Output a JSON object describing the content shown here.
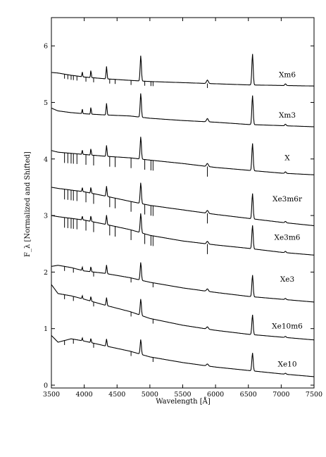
{
  "chart_data": {
    "type": "line",
    "xlabel": "Wavelength [Å]",
    "ylabel": "F_λ [Normalized and Shifted]",
    "xlim": [
      3500,
      7500
    ],
    "ylim": [
      -0.05,
      6.5
    ],
    "xticks": [
      3500,
      4000,
      4500,
      5000,
      5500,
      6000,
      6500,
      7000,
      7500
    ],
    "yticks": [
      0,
      1,
      2,
      3,
      4,
      5,
      6
    ],
    "grid": false,
    "line_color": "#000000",
    "series": [
      {
        "name": "Xm6",
        "label_y": 5.5,
        "x": [
          3500,
          3600,
          3800,
          4000,
          4300,
          4700,
          5000,
          5500,
          6000,
          6500,
          7000,
          7500
        ],
        "y": [
          5.53,
          5.52,
          5.48,
          5.45,
          5.42,
          5.39,
          5.37,
          5.35,
          5.33,
          5.31,
          5.3,
          5.29
        ]
      },
      {
        "name": "Xm3",
        "label_y": 4.78,
        "x": [
          3500,
          3600,
          3800,
          4000,
          4300,
          4700,
          5000,
          5500,
          6000,
          6500,
          7000,
          7500
        ],
        "y": [
          4.9,
          4.85,
          4.82,
          4.8,
          4.78,
          4.76,
          4.72,
          4.68,
          4.65,
          4.61,
          4.59,
          4.57
        ]
      },
      {
        "name": "X",
        "label_y": 4.03,
        "x": [
          3500,
          3600,
          3800,
          4000,
          4300,
          4700,
          5000,
          5500,
          6000,
          6500,
          7000,
          7500
        ],
        "y": [
          4.15,
          4.12,
          4.1,
          4.08,
          4.05,
          4.02,
          3.98,
          3.92,
          3.85,
          3.8,
          3.75,
          3.72
        ]
      },
      {
        "name": "Xe3m6r",
        "label_y": 3.3,
        "x": [
          3500,
          3600,
          3800,
          4000,
          4300,
          4700,
          5000,
          5500,
          6000,
          6500,
          7000,
          7500
        ],
        "y": [
          3.5,
          3.48,
          3.45,
          3.42,
          3.35,
          3.25,
          3.18,
          3.1,
          3.02,
          2.95,
          2.88,
          2.82
        ]
      },
      {
        "name": "Xe3m6",
        "label_y": 2.62,
        "x": [
          3500,
          3600,
          3800,
          4000,
          4300,
          4700,
          5000,
          5500,
          6000,
          6500,
          7000,
          7500
        ],
        "y": [
          3.0,
          2.98,
          2.95,
          2.92,
          2.85,
          2.75,
          2.65,
          2.55,
          2.48,
          2.42,
          2.35,
          2.3
        ]
      },
      {
        "name": "Xe3",
        "label_y": 1.88,
        "x": [
          3500,
          3600,
          3800,
          4000,
          4300,
          4700,
          5000,
          5500,
          6000,
          6500,
          7000,
          7500
        ],
        "y": [
          2.1,
          2.12,
          2.08,
          2.02,
          1.98,
          1.9,
          1.82,
          1.72,
          1.64,
          1.57,
          1.52,
          1.47
        ]
      },
      {
        "name": "Xe10m6",
        "label_y": 1.05,
        "x": [
          3500,
          3600,
          3800,
          4000,
          4300,
          4700,
          5000,
          5500,
          6000,
          6500,
          7000,
          7500
        ],
        "y": [
          1.78,
          1.62,
          1.58,
          1.52,
          1.42,
          1.3,
          1.18,
          1.06,
          0.97,
          0.9,
          0.85,
          0.8
        ]
      },
      {
        "name": "Xe10",
        "label_y": 0.38,
        "x": [
          3500,
          3600,
          3800,
          4000,
          4300,
          4700,
          5000,
          5500,
          6000,
          6500,
          7000,
          7500
        ],
        "y": [
          0.88,
          0.76,
          0.82,
          0.78,
          0.7,
          0.6,
          0.5,
          0.4,
          0.32,
          0.26,
          0.2,
          0.15
        ]
      }
    ]
  }
}
